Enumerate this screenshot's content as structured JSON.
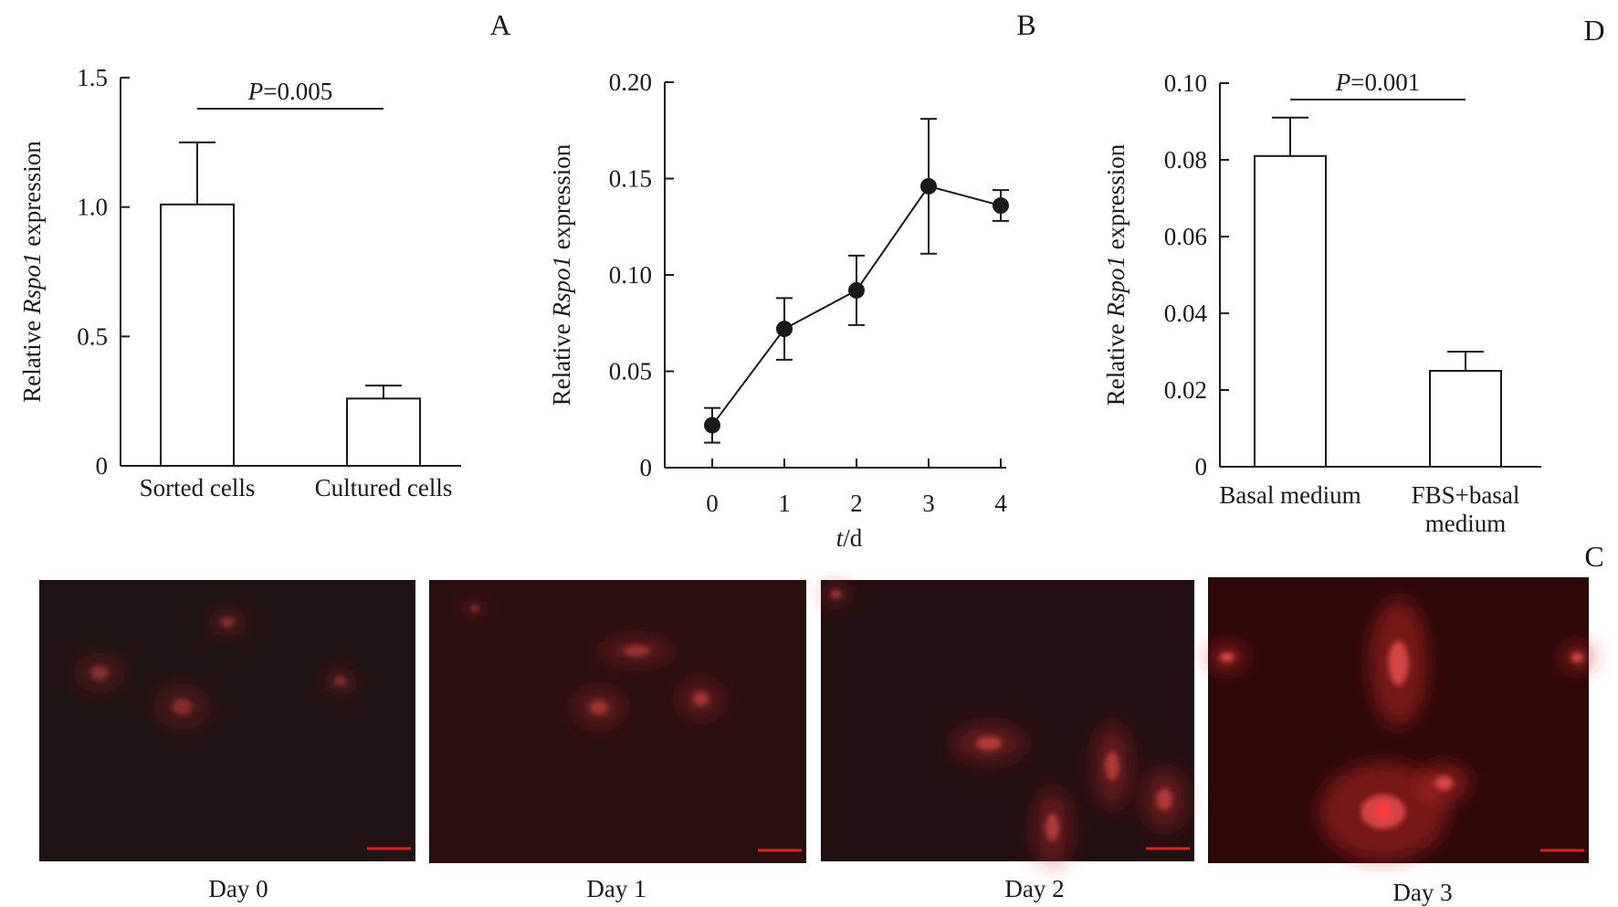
{
  "panel_letters": {
    "a": "A",
    "b": "B",
    "c": "C",
    "d": "D"
  },
  "ylabel_parts": {
    "prefix": "Relative ",
    "gene": "Rspo1",
    "suffix": " expression"
  },
  "chart_data": [
    {
      "panel": "A",
      "type": "bar",
      "categories": [
        "Sorted cells",
        "Cultured cells"
      ],
      "values": [
        1.01,
        0.26
      ],
      "errors": [
        0.24,
        0.05
      ],
      "ylim": [
        0,
        1.5
      ],
      "yticks": [
        "0",
        "0.5",
        "1.0",
        "1.5"
      ],
      "ytick_values": [
        0,
        0.5,
        1.0,
        1.5
      ],
      "ylabel": "Relative Rspo1 expression",
      "significance": {
        "p_italic": "P",
        "p_value": "=0.005"
      }
    },
    {
      "panel": "B",
      "type": "line",
      "x": [
        0,
        1,
        2,
        3,
        4
      ],
      "xticks": [
        "0",
        "1",
        "2",
        "3",
        "4"
      ],
      "y": [
        0.022,
        0.072,
        0.092,
        0.146,
        0.136
      ],
      "errors": [
        0.009,
        0.016,
        0.018,
        0.035,
        0.008
      ],
      "ylim": [
        0,
        0.2
      ],
      "yticks": [
        "0",
        "0.05",
        "0.10",
        "0.15",
        "0.20"
      ],
      "ytick_values": [
        0,
        0.05,
        0.1,
        0.15,
        0.2
      ],
      "ylabel": "Relative Rspo1 expression",
      "xlabel": {
        "italic": "t",
        "rest": "/d"
      }
    },
    {
      "panel": "D",
      "type": "bar",
      "categories": [
        "Basal medium",
        "FBS+basal medium"
      ],
      "category_lines": [
        [
          "Basal medium"
        ],
        [
          "FBS+basal",
          "medium"
        ]
      ],
      "values": [
        0.081,
        0.025
      ],
      "errors": [
        0.01,
        0.005
      ],
      "ylim": [
        0,
        0.1
      ],
      "yticks": [
        "0",
        "0.02",
        "0.04",
        "0.06",
        "0.08",
        "0.10"
      ],
      "ytick_values": [
        0,
        0.02,
        0.04,
        0.06,
        0.08,
        0.1
      ],
      "ylabel": "Relative Rspo1 expression",
      "significance": {
        "p_italic": "P",
        "p_value": "=0.001"
      }
    }
  ],
  "micrographs": [
    {
      "caption": "Day 0",
      "background": "#1f1313",
      "intensity": 0.25
    },
    {
      "caption": "Day 1",
      "background": "#2a0f0f",
      "intensity": 0.45
    },
    {
      "caption": "Day 2",
      "background": "#220f11",
      "intensity": 0.6
    },
    {
      "caption": "Day 3",
      "background": "#2e0707",
      "intensity": 1.0
    }
  ],
  "colors": {
    "ink": "#1a1a1a",
    "scalebar": "#e0201e"
  }
}
